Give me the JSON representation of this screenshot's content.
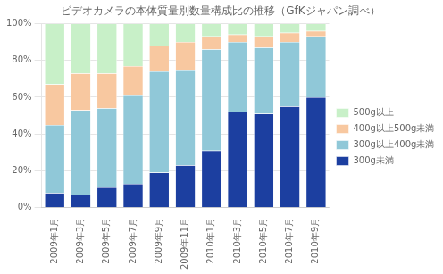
{
  "chart_data": {
    "type": "bar",
    "stacked": true,
    "title": "ビデオカメラの本体質量別数量構成比の推移（GfKジャパン調べ）",
    "categories": [
      "2009年1月",
      "2009年3月",
      "2009年5月",
      "2009年7月",
      "2009年9月",
      "2009年11月",
      "2010年1月",
      "2010年3月",
      "2010年5月",
      "2010年7月",
      "2010年9月"
    ],
    "series": [
      {
        "name": "300g未満",
        "color": "#1C3FA0",
        "values": [
          8,
          7,
          11,
          13,
          19,
          23,
          31,
          52,
          51,
          55,
          60
        ]
      },
      {
        "name": "300g以上400g未満",
        "color": "#90C8D8",
        "values": [
          37,
          46,
          43,
          48,
          55,
          52,
          55,
          38,
          36,
          35,
          33
        ]
      },
      {
        "name": "400g以上500g未満",
        "color": "#F8C8A0",
        "values": [
          22,
          20,
          19,
          16,
          14,
          15,
          7,
          4,
          6,
          5,
          3
        ]
      },
      {
        "name": "500g以上",
        "color": "#C8F0C8",
        "values": [
          33,
          27,
          27,
          23,
          12,
          10,
          7,
          6,
          7,
          5,
          4
        ]
      }
    ],
    "ylim": [
      0,
      100
    ],
    "yticks": [
      {
        "value": 0,
        "label": "0%"
      },
      {
        "value": 20,
        "label": "20%"
      },
      {
        "value": 40,
        "label": "40%"
      },
      {
        "value": 60,
        "label": "60%"
      },
      {
        "value": 80,
        "label": "80%"
      },
      {
        "value": 100,
        "label": "100%"
      }
    ],
    "grid": true,
    "legend": "right"
  }
}
